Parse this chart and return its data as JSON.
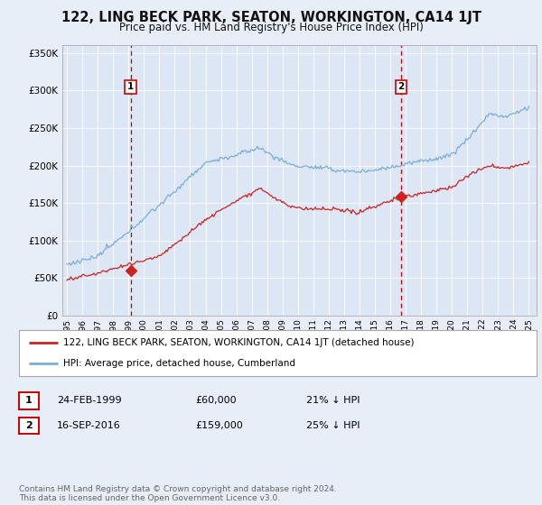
{
  "title": "122, LING BECK PARK, SEATON, WORKINGTON, CA14 1JT",
  "subtitle": "Price paid vs. HM Land Registry's House Price Index (HPI)",
  "background_color": "#e8eef7",
  "plot_bg_color": "#dce6f5",
  "ylim": [
    0,
    360000
  ],
  "yticks": [
    0,
    50000,
    100000,
    150000,
    200000,
    250000,
    300000,
    350000
  ],
  "ytick_labels": [
    "£0",
    "£50K",
    "£100K",
    "£150K",
    "£200K",
    "£250K",
    "£300K",
    "£350K"
  ],
  "sale1_date": 1999.14,
  "sale1_price": 60000,
  "sale1_label": "1",
  "sale1_text": "24-FEB-1999",
  "sale1_amount": "£60,000",
  "sale1_hpi": "21% ↓ HPI",
  "sale2_date": 2016.71,
  "sale2_price": 159000,
  "sale2_label": "2",
  "sale2_text": "16-SEP-2016",
  "sale2_amount": "£159,000",
  "sale2_hpi": "25% ↓ HPI",
  "legend_line1": "122, LING BECK PARK, SEATON, WORKINGTON, CA14 1JT (detached house)",
  "legend_line2": "HPI: Average price, detached house, Cumberland",
  "footer": "Contains HM Land Registry data © Crown copyright and database right 2024.\nThis data is licensed under the Open Government Licence v3.0.",
  "hpi_color": "#7aaed6",
  "price_color": "#cc2222",
  "vline_color": "#cc0000",
  "xlim_left": 1994.7,
  "xlim_right": 2025.5
}
